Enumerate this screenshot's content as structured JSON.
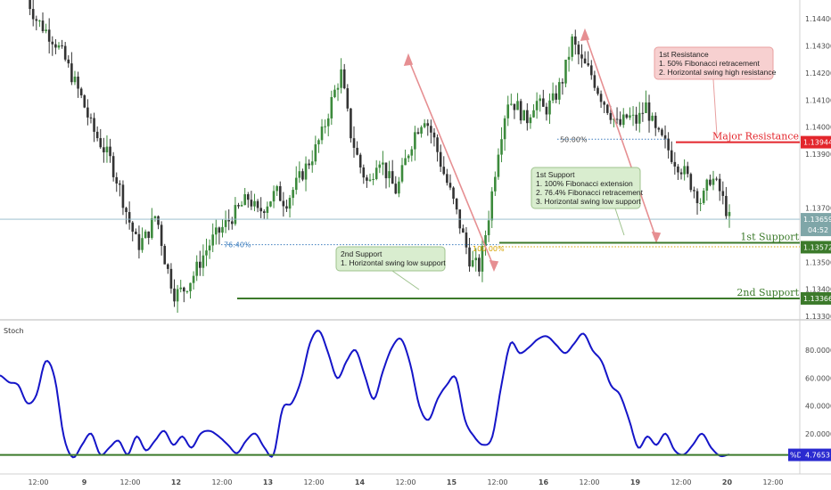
{
  "chart_data": [
    {
      "type": "candlestick",
      "ylim": [
        1.133,
        1.1447
      ],
      "y_ticks": [
        "1.14400",
        "1.14300",
        "1.14200",
        "1.14100",
        "1.14000",
        "1.13900",
        "1.13700",
        "1.13500",
        "1.13400",
        "1.13300"
      ],
      "x_ticks": [
        "12:00",
        "9",
        "12:00",
        "12",
        "12:00",
        "13",
        "12:00",
        "14",
        "12:00",
        "15",
        "12:00",
        "16",
        "12:00",
        "19",
        "12:00",
        "20",
        "12:00"
      ],
      "price_path": [
        1.1448,
        1.144,
        1.1436,
        1.1432,
        1.1426,
        1.1418,
        1.141,
        1.14,
        1.1394,
        1.1388,
        1.1378,
        1.1366,
        1.1356,
        1.136,
        1.1368,
        1.135,
        1.1338,
        1.134,
        1.1345,
        1.1352,
        1.1358,
        1.1362,
        1.1366,
        1.137,
        1.1374,
        1.1368,
        1.1372,
        1.1376,
        1.1372,
        1.1378,
        1.1384,
        1.139,
        1.1398,
        1.141,
        1.142,
        1.1398,
        1.1386,
        1.1378,
        1.139,
        1.1382,
        1.1376,
        1.1388,
        1.1398,
        1.1404,
        1.1396,
        1.1384,
        1.1374,
        1.1362,
        1.135,
        1.1348,
        1.1368,
        1.1392,
        1.141,
        1.1408,
        1.1402,
        1.141,
        1.1406,
        1.141,
        1.1418,
        1.1432,
        1.1424,
        1.142,
        1.1412,
        1.1406,
        1.14,
        1.1404,
        1.1402,
        1.1408,
        1.1398,
        1.1394,
        1.1388,
        1.1384,
        1.1378,
        1.1372,
        1.1382,
        1.1376,
        1.1366
      ],
      "levels": [
        {
          "label": "Major Resistance",
          "value": 1.13944,
          "tag": "1.13944",
          "color": "#e3262c"
        },
        {
          "label": "1st Support",
          "value": 1.13572,
          "tag": "1.13572",
          "color": "#3c7a2b"
        },
        {
          "label": "2nd Support",
          "value": 1.13366,
          "tag": "1.13366",
          "color": "#3c7a2b"
        }
      ],
      "current_price": {
        "tag": "1.13659",
        "value": 1.13659,
        "countdown": "04:52"
      },
      "fib_labels": {
        "fifty": "50.00%",
        "seventy_six": "76.40%",
        "hundred": "100.00%"
      },
      "annotations": {
        "resistance": {
          "title": "1st Resistance",
          "lines": [
            "1. 50% Fibonacci retracement",
            "2. Horizontal swing high resistance"
          ]
        },
        "first_support": {
          "title": "1st Support",
          "lines": [
            "1. 100% Fibonacci extension",
            "2. 76.4% Fibonacci retracement",
            "3. Horizontal swing low support"
          ]
        },
        "second_support": {
          "title": "2nd Support",
          "lines": [
            "1. Horizontal swing low support"
          ]
        }
      }
    },
    {
      "type": "line",
      "title": "Stoch",
      "ylim": [
        0,
        100
      ],
      "y_ticks": [
        "80.0000",
        "60.0000",
        "40.0000",
        "20.0000"
      ],
      "current_value": {
        "tag_label": "%D",
        "tag_value": "4.7653",
        "value": 4.7653
      },
      "k_path": [
        62,
        57,
        55,
        42,
        48,
        72,
        60,
        18,
        3,
        12,
        20,
        5,
        10,
        15,
        5,
        18,
        8,
        15,
        22,
        12,
        18,
        10,
        20,
        22,
        18,
        12,
        6,
        15,
        20,
        10,
        5,
        38,
        42,
        58,
        85,
        94,
        78,
        60,
        72,
        80,
        62,
        45,
        65,
        82,
        88,
        70,
        40,
        30,
        45,
        55,
        60,
        30,
        18,
        12,
        18,
        55,
        85,
        78,
        82,
        88,
        90,
        84,
        78,
        85,
        92,
        80,
        72,
        55,
        48,
        30,
        10,
        18,
        12,
        20,
        8,
        5,
        12,
        20,
        10,
        4,
        5
      ]
    }
  ]
}
